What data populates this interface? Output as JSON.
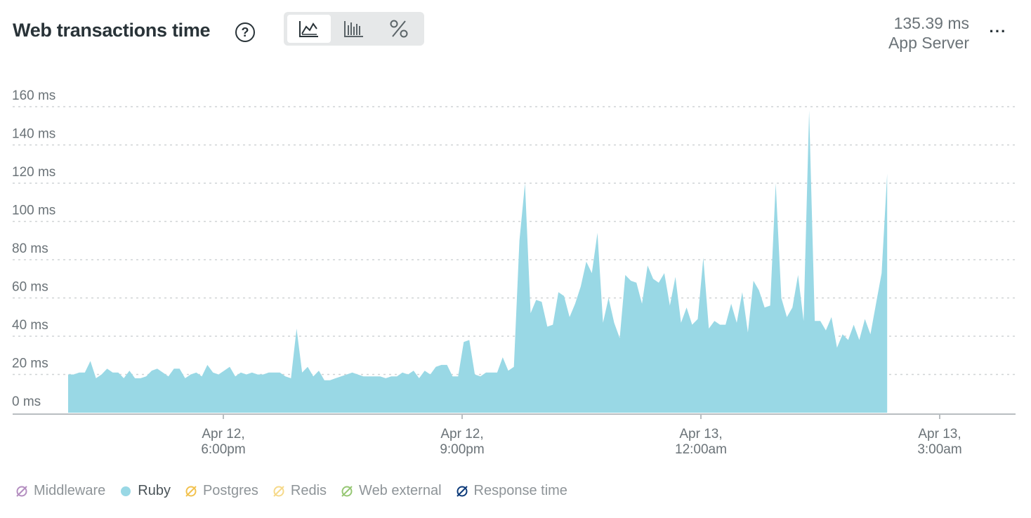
{
  "header": {
    "title": "Web transactions time",
    "help_icon": "question-circle-icon",
    "toggles": [
      {
        "name": "area-chart-icon",
        "active": true
      },
      {
        "name": "bar-chart-icon",
        "active": false
      },
      {
        "name": "percent-icon",
        "active": false
      }
    ],
    "summary_value": "135.39 ms",
    "summary_label": "App Server",
    "more_icon": "ellipsis-icon"
  },
  "colors": {
    "ruby": "#99d8e5",
    "middleware": "#b48ec0",
    "postgres": "#f2c24f",
    "redis": "#f6d98a",
    "web_external": "#96c774",
    "response_time": "#0d3b7a",
    "grid": "#cfd3d5",
    "text": "#6b7378"
  },
  "chart_data": {
    "type": "area",
    "y_ticks": [
      "0 ms",
      "20 ms",
      "40 ms",
      "60 ms",
      "80 ms",
      "100 ms",
      "120 ms",
      "140 ms",
      "160 ms"
    ],
    "ylim": [
      0,
      160
    ],
    "x_ticks": [
      {
        "line1": "Apr 12,",
        "line2": "6:00pm",
        "hour": 0
      },
      {
        "line1": "Apr 12,",
        "line2": "9:00pm",
        "hour": 3
      },
      {
        "line1": "Apr 13,",
        "line2": "12:00am",
        "hour": 6
      },
      {
        "line1": "Apr 13,",
        "line2": "3:00am",
        "hour": 9
      }
    ],
    "xlim_hours": [
      -2.0,
      10.0
    ],
    "grid": true,
    "series": [
      {
        "name": "Ruby",
        "x_hours_start": -1.95,
        "x_step_hours": 0.07,
        "values": [
          20,
          20,
          21,
          21,
          27,
          18,
          20,
          23,
          21,
          21,
          18,
          22,
          18,
          18,
          19,
          22,
          23,
          21,
          19,
          23,
          23,
          18,
          20,
          21,
          19,
          25,
          21,
          20,
          22,
          24,
          19,
          21,
          20,
          21,
          20,
          20,
          21,
          21,
          21,
          19,
          18,
          44,
          21,
          24,
          19,
          22,
          17,
          17,
          18,
          19,
          20,
          21,
          20,
          19,
          19,
          19,
          19,
          18,
          19,
          19,
          21,
          20,
          22,
          18,
          22,
          20,
          24,
          25,
          25,
          19,
          19,
          37,
          38,
          20,
          19,
          21,
          21,
          21,
          29,
          22,
          24,
          90,
          120,
          52,
          59,
          58,
          45,
          46,
          63,
          61,
          50,
          57,
          66,
          79,
          73,
          94,
          47,
          60,
          47,
          39,
          72,
          69,
          68,
          57,
          77,
          70,
          68,
          73,
          56,
          71,
          47,
          55,
          46,
          49,
          81,
          44,
          48,
          46,
          46,
          57,
          47,
          63,
          42,
          69,
          64,
          55,
          56,
          120,
          60,
          50,
          55,
          72,
          48,
          158,
          48,
          48,
          43,
          50,
          34,
          41,
          38,
          46,
          38,
          49,
          41,
          57,
          73,
          125
        ]
      },
      {
        "name": "Middleware",
        "values": []
      },
      {
        "name": "Postgres",
        "values": []
      },
      {
        "name": "Redis",
        "values": []
      },
      {
        "name": "Web external",
        "values": []
      },
      {
        "name": "Response time",
        "values": []
      }
    ]
  },
  "legend": [
    {
      "label": "Middleware",
      "type": "hidden",
      "color_key": "middleware",
      "icon": "eye-slash-icon"
    },
    {
      "label": "Ruby",
      "type": "visible",
      "color_key": "ruby",
      "icon": "dot-icon"
    },
    {
      "label": "Postgres",
      "type": "hidden",
      "color_key": "postgres",
      "icon": "eye-slash-icon"
    },
    {
      "label": "Redis",
      "type": "hidden",
      "color_key": "redis",
      "icon": "eye-slash-icon"
    },
    {
      "label": "Web external",
      "type": "hidden",
      "color_key": "web_external",
      "icon": "eye-slash-icon"
    },
    {
      "label": "Response time",
      "type": "hidden",
      "color_key": "response_time",
      "icon": "eye-slash-icon"
    }
  ]
}
